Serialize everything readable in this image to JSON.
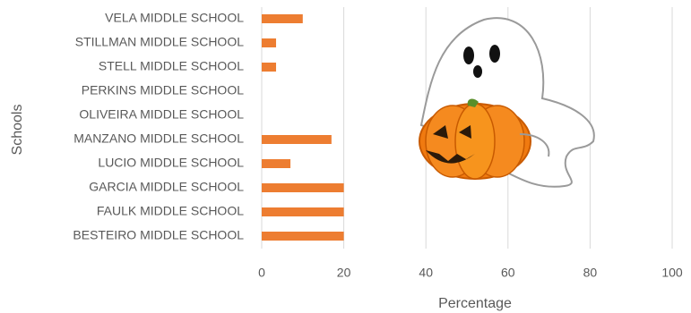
{
  "chart_data": {
    "type": "bar",
    "orientation": "horizontal",
    "categories": [
      "VELA MIDDLE SCHOOL",
      "STILLMAN MIDDLE SCHOOL",
      "STELL MIDDLE SCHOOL",
      "PERKINS MIDDLE SCHOOL",
      "OLIVEIRA MIDDLE SCHOOL",
      "MANZANO MIDDLE SCHOOL",
      "LUCIO MIDDLE SCHOOL",
      "GARCIA MIDDLE SCHOOL",
      "FAULK MIDDLE SCHOOL",
      "BESTEIRO MIDDLE SCHOOL"
    ],
    "values": [
      10,
      3.5,
      3.5,
      0,
      0,
      17,
      7,
      20,
      20,
      20
    ],
    "color": "#ed7d31",
    "xlim": [
      0,
      100
    ],
    "xticks": [
      0,
      20,
      40,
      60,
      80,
      100
    ],
    "grid": true,
    "x_label": "Percentage",
    "y_label": "Schools"
  }
}
